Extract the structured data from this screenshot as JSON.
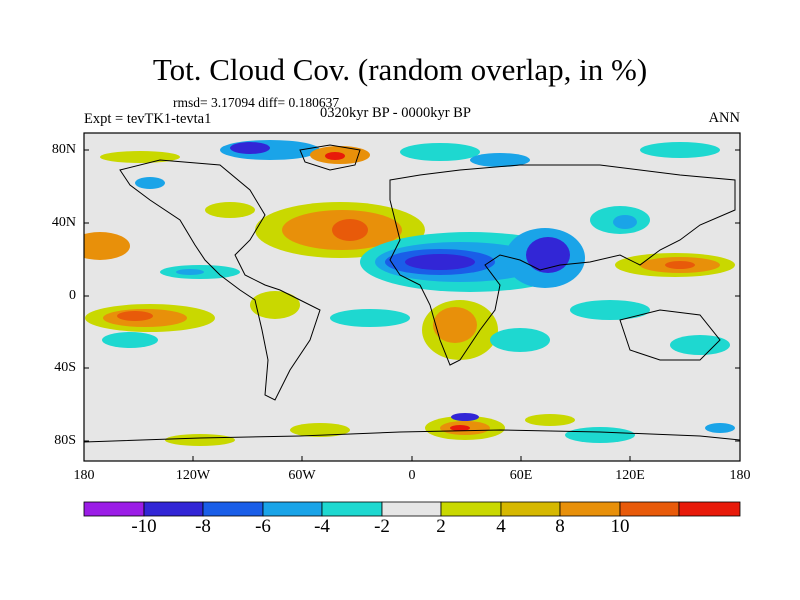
{
  "title": "Tot. Cloud Cov. (random overlap, in %)",
  "stats": "rmsd= 3.17094 diff= 0.180637",
  "experiment": "Expt = tevTK1-tevta1",
  "period": "0320kyr BP - 0000kyr BP",
  "season": "ANN",
  "lat_labels": [
    "80N",
    "40N",
    "0",
    "40S",
    "80S"
  ],
  "lon_labels": [
    "180",
    "120W",
    "60W",
    "0",
    "60E",
    "120E",
    "180"
  ],
  "colorbar": {
    "labels": [
      "-10",
      "-8",
      "-6",
      "-4",
      "-2",
      "2",
      "4",
      "8",
      "10"
    ],
    "colors": [
      "#9b1de6",
      "#3226d6",
      "#1a5ee8",
      "#1aa4e8",
      "#1ed8d0",
      "#e6e6e6",
      "#c9d800",
      "#d6b800",
      "#e8900a",
      "#e85a0a",
      "#e81a0a"
    ]
  }
}
